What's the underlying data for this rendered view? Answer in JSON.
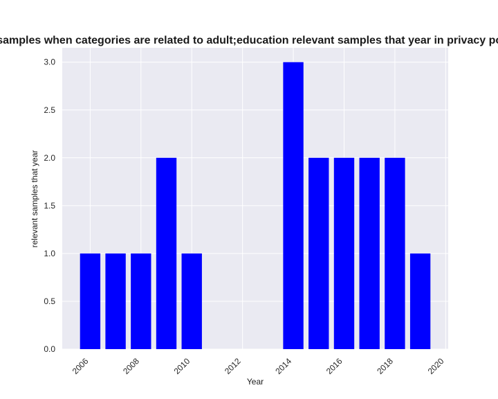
{
  "chart_data": {
    "type": "bar",
    "title": "Number of samples when categories are related to adult;education relevant samples that year in privacy policies by Year",
    "xlabel": "Year",
    "ylabel": "relevant samples that year",
    "x": [
      2006,
      2007,
      2008,
      2009,
      2010,
      2014,
      2015,
      2016,
      2017,
      2018,
      2019
    ],
    "values": [
      1,
      1,
      1,
      2,
      1,
      3,
      2,
      2,
      2,
      2,
      1
    ],
    "xlim": [
      2004.9,
      2020.1
    ],
    "ylim": [
      0,
      3.15
    ],
    "xticks": [
      2006,
      2008,
      2010,
      2012,
      2014,
      2016,
      2018,
      2020
    ],
    "yticks": [
      "0.0",
      "0.5",
      "1.0",
      "1.5",
      "2.0",
      "2.5",
      "3.0"
    ],
    "bar_color": "#0000ff",
    "plot_background": "#eaeaf2",
    "grid": true,
    "legend": "none"
  }
}
